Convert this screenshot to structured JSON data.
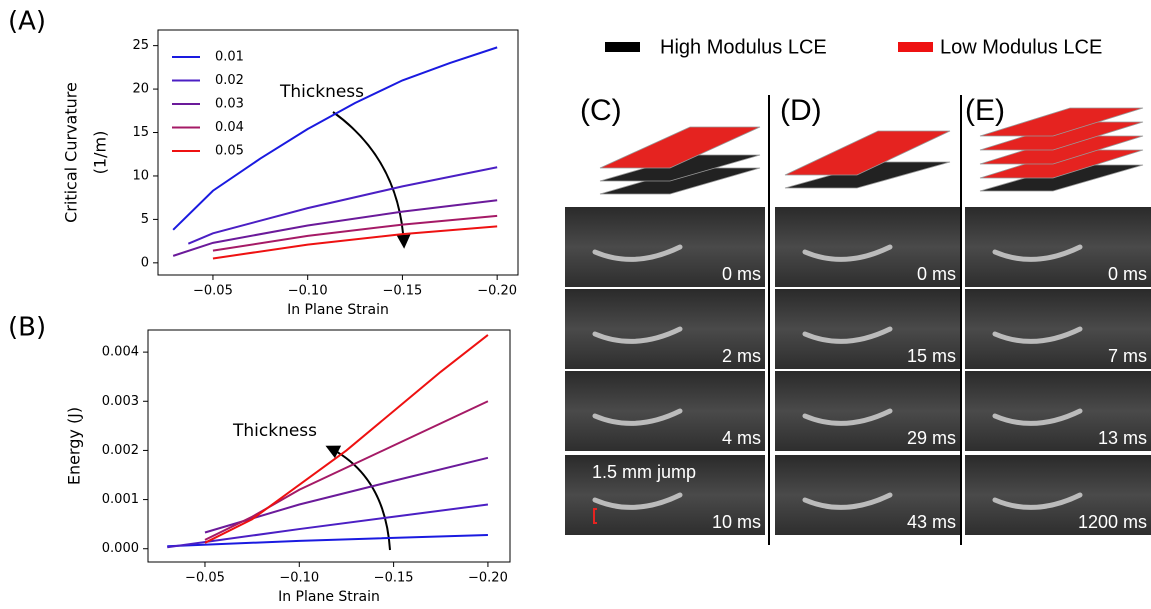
{
  "chart_data": [
    {
      "type": "line",
      "panel": "(A)",
      "annotation": "Thickness",
      "xlabel": "In Plane Strain",
      "ylabel": [
        "Critical Curvature",
        "(1/m)"
      ],
      "xlim": [
        -0.021,
        -0.211
      ],
      "ylim": [
        -1.4,
        26.8
      ],
      "xticks": [
        {
          "value": -0.05,
          "label": "−0.05"
        },
        {
          "value": -0.1,
          "label": "−0.10"
        },
        {
          "value": -0.15,
          "label": "−0.15"
        },
        {
          "value": -0.2,
          "label": "−0.20"
        }
      ],
      "yticks": [
        0,
        5,
        10,
        15,
        20,
        25
      ],
      "series": [
        {
          "name": "0.01",
          "color": "#1a1ae0",
          "x": [
            -0.029,
            -0.05,
            -0.075,
            -0.1,
            -0.125,
            -0.15,
            -0.175,
            -0.2
          ],
          "values": [
            3.8,
            8.3,
            12.0,
            15.4,
            18.4,
            21.0,
            23.0,
            24.8
          ]
        },
        {
          "name": "0.02",
          "color": "#4b1fc4",
          "x": [
            -0.037,
            -0.05,
            -0.1,
            -0.15,
            -0.2
          ],
          "values": [
            2.2,
            3.4,
            6.3,
            8.8,
            11.0
          ]
        },
        {
          "name": "0.03",
          "color": "#6b1a9a",
          "x": [
            -0.029,
            -0.05,
            -0.1,
            -0.15,
            -0.2
          ],
          "values": [
            0.8,
            2.3,
            4.3,
            5.9,
            7.2
          ]
        },
        {
          "name": "0.04",
          "color": "#a51a66",
          "x": [
            -0.05,
            -0.1,
            -0.15,
            -0.2
          ],
          "values": [
            1.4,
            3.1,
            4.4,
            5.4
          ]
        },
        {
          "name": "0.05",
          "color": "#ee1111",
          "x": [
            -0.05,
            -0.1,
            -0.15,
            -0.2
          ],
          "values": [
            0.5,
            2.1,
            3.3,
            4.2
          ]
        }
      ]
    },
    {
      "type": "line",
      "panel": "(B)",
      "annotation": "Thickness",
      "xlabel": "In Plane Strain",
      "ylabel": [
        "Energy (J)"
      ],
      "xlim": [
        -0.0198,
        -0.2117
      ],
      "ylim": [
        -0.00027,
        0.00445
      ],
      "xticks": [
        {
          "value": -0.05,
          "label": "−0.05"
        },
        {
          "value": -0.1,
          "label": "−0.10"
        },
        {
          "value": -0.15,
          "label": "−0.15"
        },
        {
          "value": -0.2,
          "label": "−0.20"
        }
      ],
      "yticks": [
        {
          "value": 0,
          "label": "0.000"
        },
        {
          "value": 0.001,
          "label": "0.001"
        },
        {
          "value": 0.002,
          "label": "0.002"
        },
        {
          "value": 0.003,
          "label": "0.003"
        },
        {
          "value": 0.004,
          "label": "0.004"
        }
      ],
      "series": [
        {
          "color": "#1a1ae0",
          "x": [
            -0.03,
            -0.1,
            -0.2
          ],
          "values": [
            5e-05,
            0.00016,
            0.00028
          ]
        },
        {
          "color": "#4b1fc4",
          "x": [
            -0.03,
            -0.1,
            -0.15,
            -0.2
          ],
          "values": [
            3e-05,
            0.0004,
            0.00065,
            0.0009
          ]
        },
        {
          "color": "#6b1a9a",
          "x": [
            -0.05,
            -0.1,
            -0.15,
            -0.2
          ],
          "values": [
            0.00033,
            0.0009,
            0.00138,
            0.00185
          ]
        },
        {
          "color": "#a51a66",
          "x": [
            -0.05,
            -0.075,
            -0.1,
            -0.15,
            -0.2
          ],
          "values": [
            0.00018,
            0.00065,
            0.0012,
            0.0021,
            0.003
          ]
        },
        {
          "color": "#ee1111",
          "x": [
            -0.05,
            -0.075,
            -0.1,
            -0.125,
            -0.15,
            -0.175,
            -0.2
          ],
          "values": [
            0.00012,
            0.0006,
            0.0013,
            0.002,
            0.0028,
            0.0036,
            0.00435
          ]
        }
      ]
    }
  ],
  "legend": [
    {
      "label": "High Modulus LCE",
      "color": "#000000"
    },
    {
      "label": "Low Modulus LCE",
      "color": "#ee1111"
    }
  ],
  "panels": [
    {
      "label": "(C)",
      "frames": [
        "0 ms",
        "2 ms",
        "4 ms",
        "10 ms"
      ],
      "note": "1.5 mm jump"
    },
    {
      "label": "(D)",
      "frames": [
        "0 ms",
        "15 ms",
        "29 ms",
        "43 ms"
      ]
    },
    {
      "label": "(E)",
      "frames": [
        "0 ms",
        "7 ms",
        "13 ms",
        "1200 ms"
      ]
    }
  ]
}
